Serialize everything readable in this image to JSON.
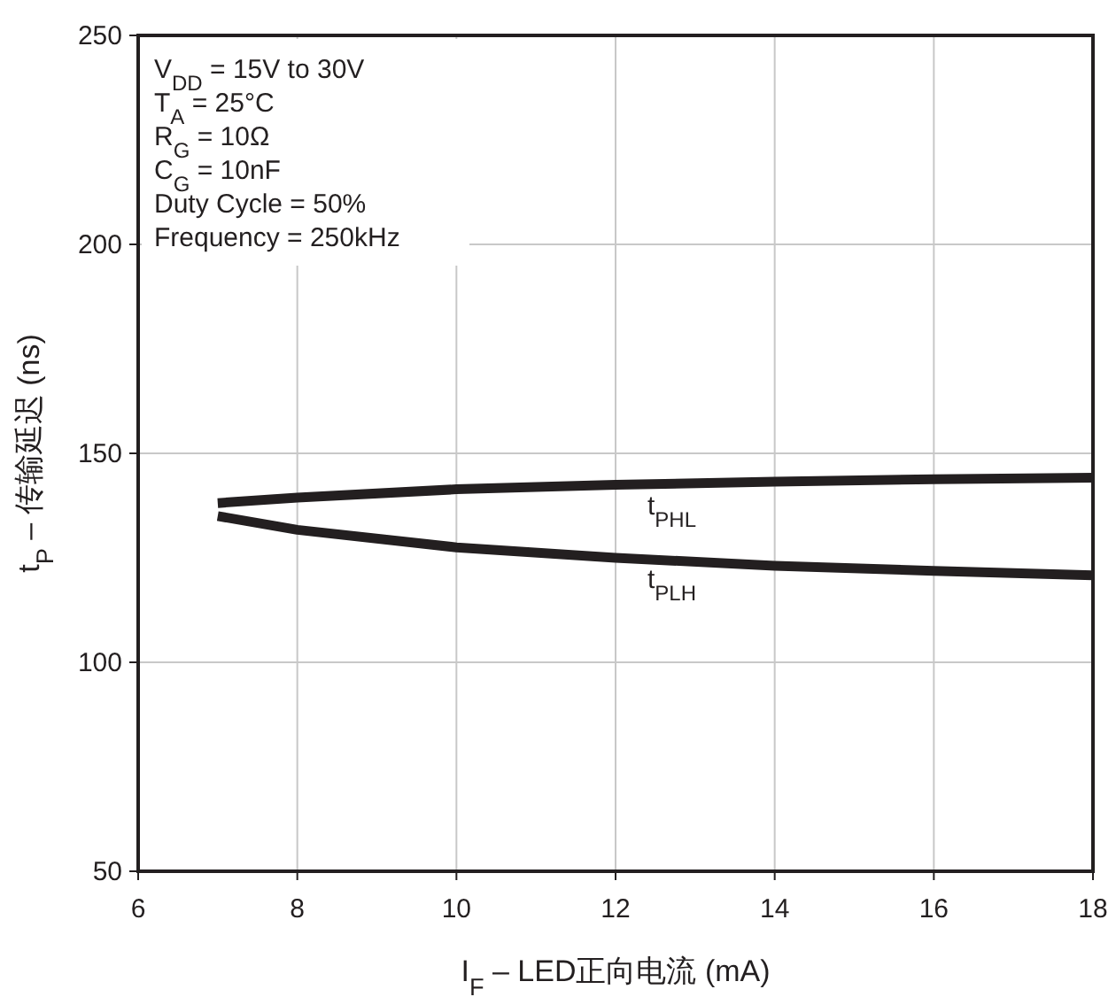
{
  "chart_data": {
    "type": "line",
    "xlabel": "I$_{F}$ – LED正向电流 (mA)",
    "ylabel": "t$_{P}$ – 传输延迟 (ns)",
    "x": [
      7,
      8,
      10,
      12,
      14,
      16,
      18
    ],
    "series": [
      {
        "name": "t$_{PHL}$",
        "color": "#231f20",
        "values": [
          138.1,
          139.4,
          141.4,
          142.5,
          143.2,
          143.8,
          144.2
        ]
      },
      {
        "name": "t$_{PLH}$",
        "color": "#231f20",
        "values": [
          135.0,
          131.7,
          127.5,
          125.0,
          123.1,
          121.9,
          120.8
        ]
      }
    ],
    "annotations": [
      "V$_{DD}$ = 15V to 30V",
      "T$_{A}$ = 25°C",
      "R$_{G}$ = 10Ω",
      "C$_{G}$ = 10nF",
      "Duty Cycle = 50%",
      "Frequency = 250kHz"
    ],
    "xlim": [
      6,
      18
    ],
    "ylim": [
      50,
      250
    ],
    "xticks": [
      6,
      8,
      10,
      12,
      14,
      16,
      18
    ],
    "yticks": [
      50,
      100,
      150,
      200,
      250
    ],
    "grid": true
  }
}
